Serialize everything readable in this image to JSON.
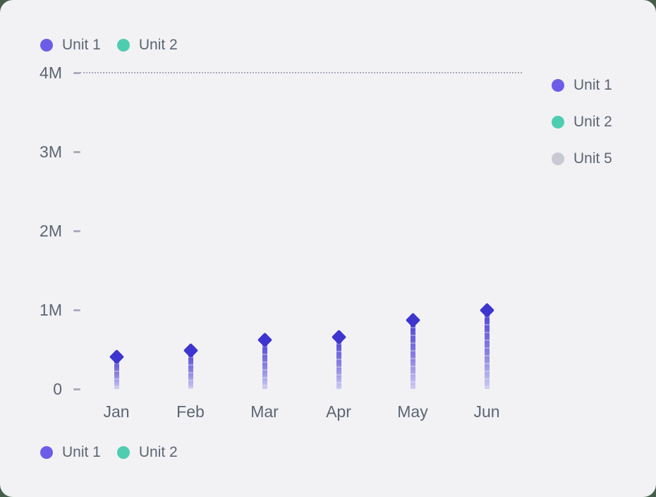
{
  "page": {
    "background_color": "#455e4c",
    "card_background": "#f2f2f4"
  },
  "colors": {
    "unit1": "#6c5de8",
    "unit2": "#4ecdb0",
    "unit5": "#c9c9d4",
    "marker": "#3e35cf",
    "stem_top": "#4c43d6",
    "stem_bottom": "#cdcbf2",
    "axis_text": "#5d6573",
    "tick": "#a9aeb9",
    "gridline": "#a4aab5"
  },
  "legend_top": {
    "items": [
      {
        "label": "Unit 1",
        "color_key": "unit1"
      },
      {
        "label": "Unit 2",
        "color_key": "unit2"
      }
    ]
  },
  "legend_right": {
    "items": [
      {
        "label": "Unit 1",
        "color_key": "unit1"
      },
      {
        "label": "Unit 2",
        "color_key": "unit2"
      },
      {
        "label": "Unit 5",
        "color_key": "unit5"
      }
    ]
  },
  "legend_bottom": {
    "items": [
      {
        "label": "Unit 1",
        "color_key": "unit1"
      },
      {
        "label": "Unit 2",
        "color_key": "unit2"
      }
    ]
  },
  "chart_data": {
    "type": "bar",
    "variant": "lollipop",
    "title": "",
    "xlabel": "",
    "ylabel": "",
    "categories": [
      "Jan",
      "Feb",
      "Mar",
      "Apr",
      "May",
      "Jun"
    ],
    "series": [
      {
        "name": "Unit 1",
        "unit": "millions",
        "values_millions": [
          0.41,
          0.49,
          0.625,
          0.66,
          0.87,
          1.0
        ]
      }
    ],
    "y_tick_labels": [
      "0",
      "1M",
      "2M",
      "3M",
      "4M"
    ],
    "ylim_millions": [
      0,
      4
    ],
    "grid": "dotted line at 4M only",
    "legend_positions": [
      "top",
      "right",
      "bottom"
    ]
  }
}
